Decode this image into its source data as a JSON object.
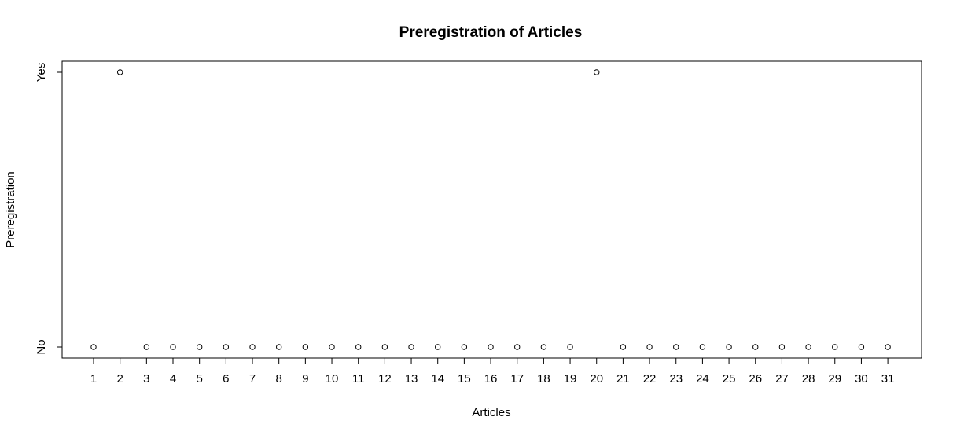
{
  "chart_data": {
    "type": "scatter",
    "title": "Preregistration of Articles",
    "xlabel": "Articles",
    "ylabel": "Preregistration",
    "x_categories": [
      "1",
      "2",
      "3",
      "4",
      "5",
      "6",
      "7",
      "8",
      "9",
      "10",
      "11",
      "12",
      "13",
      "14",
      "15",
      "16",
      "17",
      "18",
      "19",
      "20",
      "21",
      "22",
      "23",
      "24",
      "25",
      "26",
      "27",
      "28",
      "29",
      "30",
      "31"
    ],
    "y_categories": [
      "No",
      "Yes"
    ],
    "values": [
      "No",
      "Yes",
      "No",
      "No",
      "No",
      "No",
      "No",
      "No",
      "No",
      "No",
      "No",
      "No",
      "No",
      "No",
      "No",
      "No",
      "No",
      "No",
      "No",
      "Yes",
      "No",
      "No",
      "No",
      "No",
      "No",
      "No",
      "No",
      "No",
      "No",
      "No",
      "No"
    ],
    "marker": "open-circle",
    "grid": false,
    "legend": "none"
  }
}
